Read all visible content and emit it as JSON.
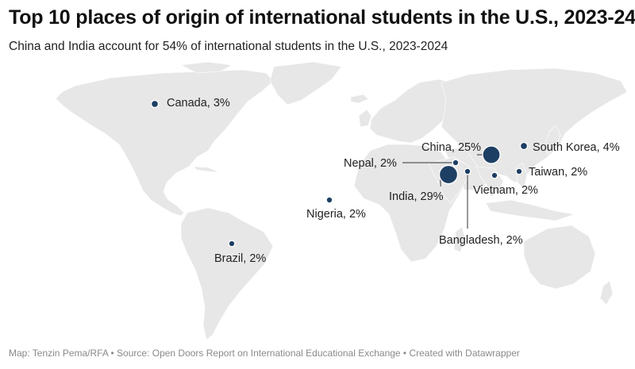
{
  "title": "Top 10 places of origin of international students in the U.S., 2023-24",
  "subtitle": "China and India account for 54% of international students in the U.S., 2023-2024",
  "footer": "Map: Tenzin Pema/RFA • Source: Open Doors Report on International Educational Exchange • Created with Datawrapper",
  "colors": {
    "marker": "#1d3f63",
    "land": "#e7e7e7"
  },
  "places": [
    {
      "country": "India",
      "share_pct": 29,
      "label": "India, 29%"
    },
    {
      "country": "China",
      "share_pct": 25,
      "label": "China, 25%"
    },
    {
      "country": "South Korea",
      "share_pct": 4,
      "label": "South Korea, 4%"
    },
    {
      "country": "Canada",
      "share_pct": 3,
      "label": "Canada, 3%"
    },
    {
      "country": "Taiwan",
      "share_pct": 2,
      "label": "Taiwan, 2%"
    },
    {
      "country": "Vietnam",
      "share_pct": 2,
      "label": "Vietnam, 2%"
    },
    {
      "country": "Nigeria",
      "share_pct": 2,
      "label": "Nigeria, 2%"
    },
    {
      "country": "Bangladesh",
      "share_pct": 2,
      "label": "Bangladesh, 2%"
    },
    {
      "country": "Brazil",
      "share_pct": 2,
      "label": "Brazil, 2%"
    },
    {
      "country": "Nepal",
      "share_pct": 2,
      "label": "Nepal, 2%"
    }
  ]
}
